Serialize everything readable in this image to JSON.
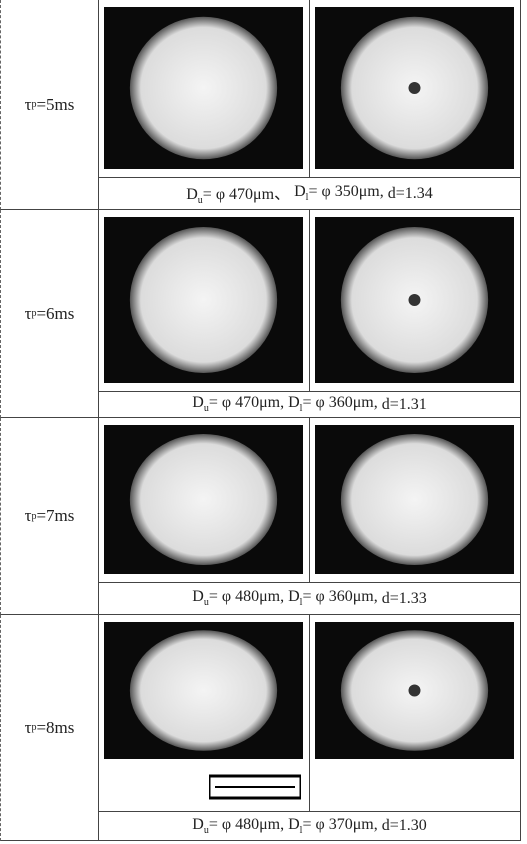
{
  "rows": [
    {
      "label": {
        "symbol": "τ",
        "sub": "p",
        "rest": "=5ms"
      },
      "caption": {
        "d1": "D",
        "s1": "u",
        "t1": "= φ 470μm、",
        "d2": "D",
        "s2": "l",
        "t2": "= φ 350μm,",
        "t3": "d=1.34"
      }
    },
    {
      "label": {
        "symbol": "τ",
        "sub": "p",
        "rest": "=6ms"
      },
      "caption": {
        "d1": "D",
        "s1": "u",
        "t1": "= φ 470μm,",
        "d2": "D",
        "s2": "l",
        "t2": "= φ 360μm,",
        "t3": "d=1.31"
      }
    },
    {
      "label": {
        "symbol": "τ",
        "sub": "p",
        "rest": "=7ms"
      },
      "caption": {
        "d1": "D",
        "s1": "u",
        "t1": "= φ 480μm,",
        "d2": "D",
        "s2": "l",
        "t2": "= φ 360μm,",
        "t3": "d=1.33"
      }
    },
    {
      "label": {
        "symbol": "τ",
        "sub": "p",
        "rest": "=8ms"
      },
      "caption": {
        "d1": "D",
        "s1": "u",
        "t1": "= φ 480μm,",
        "d2": "D",
        "s2": "l",
        "t2": "= φ 370μm,",
        "t3": "d=1.30"
      }
    }
  ]
}
